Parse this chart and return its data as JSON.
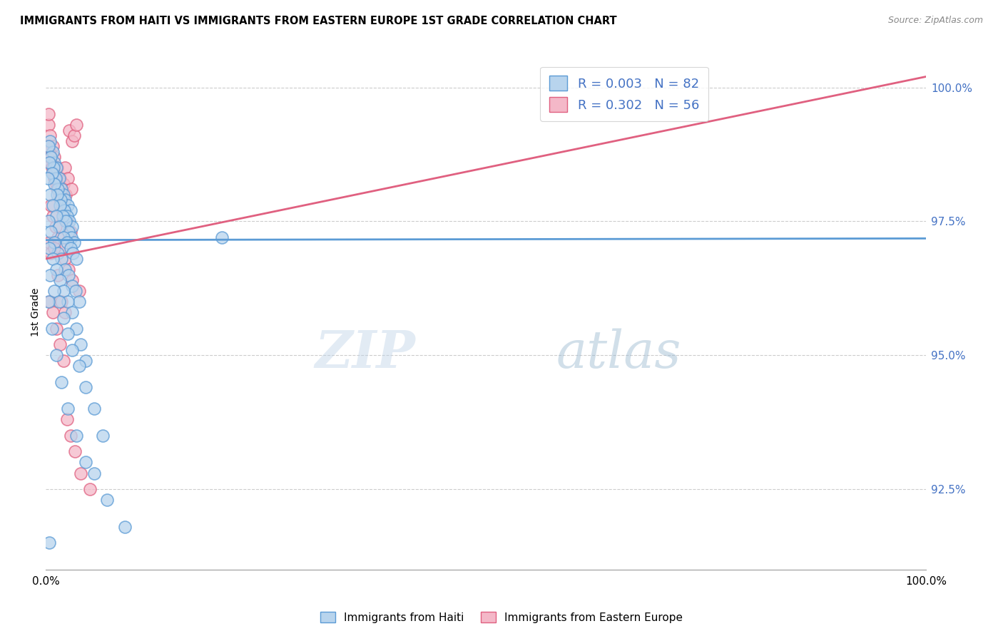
{
  "title": "IMMIGRANTS FROM HAITI VS IMMIGRANTS FROM EASTERN EUROPE 1ST GRADE CORRELATION CHART",
  "source": "Source: ZipAtlas.com",
  "ylabel": "1st Grade",
  "right_yticks": [
    92.5,
    95.0,
    97.5,
    100.0
  ],
  "color_haiti_fill": "#b8d4ed",
  "color_haiti_edge": "#5b9bd5",
  "color_eastern_fill": "#f4b8c8",
  "color_eastern_edge": "#e06080",
  "watermark_text": "ZIPatlas",
  "haiti_line_x": [
    0,
    100
  ],
  "haiti_line_y": [
    97.15,
    97.18
  ],
  "eastern_line_x": [
    0,
    100
  ],
  "eastern_line_y": [
    96.8,
    100.2
  ],
  "haiti_x": [
    0.5,
    0.8,
    1.0,
    1.2,
    1.5,
    1.8,
    2.0,
    2.2,
    2.5,
    2.8,
    0.3,
    0.6,
    0.9,
    1.1,
    1.4,
    1.7,
    2.1,
    2.4,
    2.7,
    3.0,
    0.4,
    0.7,
    1.0,
    1.3,
    1.6,
    1.9,
    2.3,
    2.6,
    2.9,
    3.2,
    0.2,
    0.5,
    0.8,
    1.2,
    1.5,
    2.0,
    2.4,
    2.8,
    3.1,
    3.5,
    0.3,
    0.6,
    1.0,
    1.4,
    1.8,
    2.2,
    2.6,
    3.0,
    3.4,
    3.8,
    0.4,
    0.8,
    1.2,
    1.6,
    2.0,
    2.5,
    3.0,
    3.5,
    4.0,
    4.5,
    0.5,
    1.0,
    1.5,
    2.0,
    2.5,
    3.0,
    3.8,
    4.5,
    5.5,
    6.5,
    0.3,
    0.7,
    1.2,
    1.8,
    2.5,
    3.5,
    4.5,
    5.5,
    7.0,
    9.0,
    0.4,
    20.0
  ],
  "haiti_y": [
    99.0,
    98.8,
    98.6,
    98.5,
    98.3,
    98.1,
    98.0,
    97.9,
    97.8,
    97.7,
    98.9,
    98.7,
    98.5,
    98.3,
    98.1,
    97.9,
    97.7,
    97.6,
    97.5,
    97.4,
    98.6,
    98.4,
    98.2,
    98.0,
    97.8,
    97.6,
    97.5,
    97.3,
    97.2,
    97.1,
    98.3,
    98.0,
    97.8,
    97.6,
    97.4,
    97.2,
    97.1,
    97.0,
    96.9,
    96.8,
    97.5,
    97.3,
    97.1,
    96.9,
    96.8,
    96.6,
    96.5,
    96.3,
    96.2,
    96.0,
    97.0,
    96.8,
    96.6,
    96.4,
    96.2,
    96.0,
    95.8,
    95.5,
    95.2,
    94.9,
    96.5,
    96.2,
    96.0,
    95.7,
    95.4,
    95.1,
    94.8,
    94.4,
    94.0,
    93.5,
    96.0,
    95.5,
    95.0,
    94.5,
    94.0,
    93.5,
    93.0,
    92.8,
    92.3,
    91.8,
    91.5,
    97.2
  ],
  "eastern_x": [
    0.3,
    0.5,
    0.8,
    1.0,
    1.3,
    1.6,
    2.0,
    2.3,
    2.7,
    3.0,
    0.4,
    0.6,
    0.9,
    1.2,
    1.5,
    1.8,
    2.2,
    2.5,
    2.9,
    3.2,
    0.3,
    0.5,
    0.7,
    1.0,
    1.3,
    1.7,
    2.1,
    2.4,
    2.8,
    3.5,
    0.4,
    0.6,
    0.8,
    1.1,
    1.4,
    1.8,
    2.2,
    2.6,
    3.0,
    3.8,
    0.5,
    0.8,
    1.2,
    1.6,
    2.0,
    2.4,
    2.8,
    3.3,
    4.0,
    5.0,
    0.3,
    0.6,
    1.0,
    1.4,
    1.8,
    2.2
  ],
  "eastern_y": [
    99.3,
    99.1,
    98.9,
    98.7,
    98.5,
    98.3,
    98.2,
    98.0,
    99.2,
    99.0,
    98.8,
    98.6,
    98.4,
    98.2,
    98.0,
    97.8,
    98.5,
    98.3,
    98.1,
    99.1,
    98.9,
    98.7,
    98.5,
    98.3,
    98.1,
    97.9,
    97.7,
    97.5,
    97.3,
    99.3,
    97.1,
    96.9,
    97.6,
    97.4,
    97.2,
    97.0,
    96.8,
    96.6,
    96.4,
    96.2,
    96.0,
    95.8,
    95.5,
    95.2,
    94.9,
    93.8,
    93.5,
    93.2,
    92.8,
    92.5,
    99.5,
    97.8,
    97.0,
    96.5,
    96.0,
    95.8
  ],
  "xlim": [
    0,
    100
  ],
  "ylim": [
    91.0,
    100.6
  ]
}
